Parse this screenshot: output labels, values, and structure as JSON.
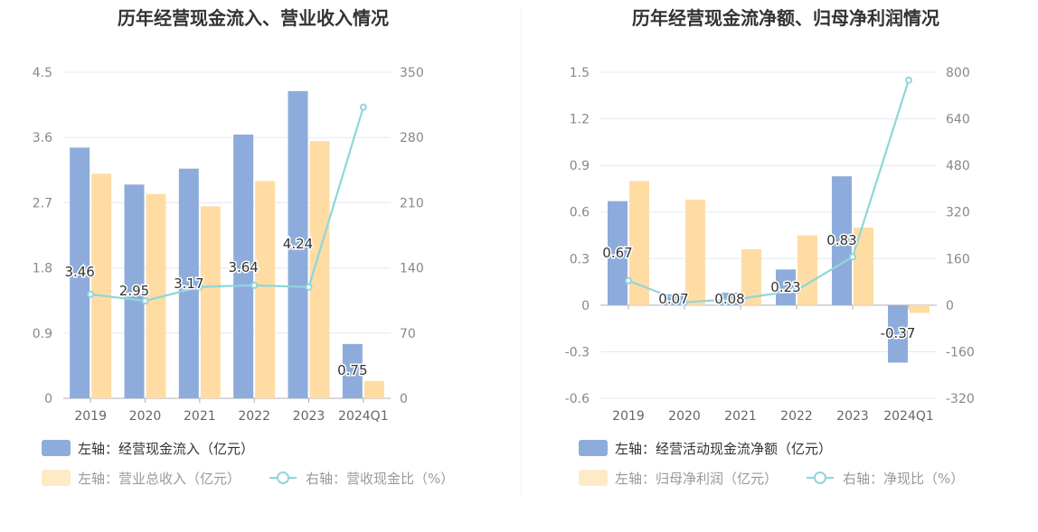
{
  "colors": {
    "blue_bar": "#8eacdb",
    "orange_bar": "#ffdca3",
    "line": "#8fd6da",
    "grid": "#e3e8f4",
    "axis": "#b0b0b0"
  },
  "chart_data": [
    {
      "type": "bar",
      "title": "历年经营现金流入、营业收入情况",
      "categories": [
        "2019",
        "2020",
        "2021",
        "2022",
        "2023",
        "2024Q1"
      ],
      "left_axis": {
        "ticks": [
          "0",
          "0.9",
          "1.8",
          "2.7",
          "3.6",
          "4.5"
        ],
        "ylim": [
          0,
          4.5
        ]
      },
      "right_axis": {
        "ticks": [
          "0",
          "70",
          "140",
          "210",
          "280",
          "350"
        ],
        "ylim": [
          0,
          350
        ]
      },
      "series": [
        {
          "name": "左轴：经营现金流入（亿元）",
          "kind": "bar",
          "axis": "left",
          "color": "#8eacdb",
          "values": [
            3.46,
            2.95,
            3.17,
            3.64,
            4.24,
            0.75
          ],
          "labels": [
            "3.46",
            "2.95",
            "3.17",
            "3.64",
            "4.24",
            "0.75"
          ]
        },
        {
          "name": "左轴：营业总收入（亿元）",
          "kind": "bar",
          "axis": "left",
          "color": "#ffdca3",
          "values": [
            3.1,
            2.82,
            2.65,
            3.0,
            3.55,
            0.24
          ]
        },
        {
          "name": "右轴：营收现金比（%）",
          "kind": "line",
          "axis": "right",
          "color": "#8fd6da",
          "values": [
            111.6,
            104.6,
            119.6,
            121.3,
            119.4,
            312.5
          ]
        }
      ],
      "legend": [
        {
          "text": "左轴：经营现金流入（亿元）",
          "marker": "bar-blue",
          "active": true
        },
        {
          "text": "左轴：营业总收入（亿元）",
          "marker": "bar-orange",
          "active": false
        },
        {
          "text": "右轴：营收现金比（%）",
          "marker": "line",
          "active": false
        }
      ],
      "legend_position": "bottom-left"
    },
    {
      "type": "bar",
      "title": "历年经营现金流净额、归母净利润情况",
      "categories": [
        "2019",
        "2020",
        "2021",
        "2022",
        "2023",
        "2024Q1"
      ],
      "left_axis": {
        "ticks": [
          "-0.6",
          "-0.3",
          "0",
          "0.3",
          "0.6",
          "0.9",
          "1.2",
          "1.5"
        ],
        "ylim": [
          -0.6,
          1.5
        ]
      },
      "right_axis": {
        "ticks": [
          "-320",
          "-160",
          "0",
          "160",
          "320",
          "480",
          "640",
          "800"
        ],
        "ylim": [
          -320,
          800
        ]
      },
      "series": [
        {
          "name": "左轴：经营活动现金流净额（亿元）",
          "kind": "bar",
          "axis": "left",
          "color": "#8eacdb",
          "values": [
            0.67,
            0.07,
            0.08,
            0.23,
            0.83,
            -0.37
          ],
          "labels": [
            "0.67",
            "0.07",
            "0.08",
            "0.23",
            "0.83",
            "-0.37"
          ]
        },
        {
          "name": "左轴：归母净利润（亿元）",
          "kind": "bar",
          "axis": "left",
          "color": "#ffdca3",
          "values": [
            0.8,
            0.68,
            0.36,
            0.45,
            0.5,
            -0.05
          ]
        },
        {
          "name": "右轴：净现比（%）",
          "kind": "line",
          "axis": "right",
          "color": "#8fd6da",
          "values": [
            84,
            10,
            22,
            51,
            166,
            773
          ]
        }
      ],
      "legend": [
        {
          "text": "左轴：经营活动现金流净额（亿元）",
          "marker": "bar-blue",
          "active": true
        },
        {
          "text": "左轴：归母净利润（亿元）",
          "marker": "bar-orange",
          "active": false
        },
        {
          "text": "右轴：净现比（%）",
          "marker": "line",
          "active": false
        }
      ],
      "legend_position": "bottom-left"
    }
  ]
}
